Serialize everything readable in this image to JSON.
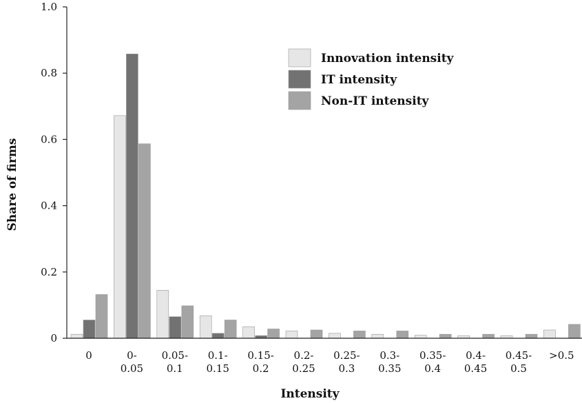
{
  "chart_data": {
    "type": "bar",
    "xlabel": "Intensity",
    "ylabel": "Share of firms",
    "ylim": [
      0,
      1.0
    ],
    "yticks": [
      "0",
      "0.2",
      "0.4",
      "0.6",
      "0.8",
      "1.0"
    ],
    "yticks_values": [
      0,
      0.2,
      0.4,
      0.6,
      0.8,
      1.0
    ],
    "categories": [
      [
        "0"
      ],
      [
        "0-",
        "0.05"
      ],
      [
        "0.05-",
        "0.1"
      ],
      [
        "0.1-",
        "0.15"
      ],
      [
        "0.15-",
        "0.2"
      ],
      [
        "0.2-",
        "0.25"
      ],
      [
        "0.25-",
        "0.3"
      ],
      [
        "0.3-",
        "0.35"
      ],
      [
        "0.35-",
        "0.4"
      ],
      [
        "0.4-",
        "0.45"
      ],
      [
        "0.45-",
        "0.5"
      ],
      [
        ">0.5"
      ]
    ],
    "series": [
      {
        "name": "Innovation intensity",
        "color": "#e6e6e6",
        "values": [
          0.012,
          0.672,
          0.145,
          0.068,
          0.035,
          0.022,
          0.015,
          0.012,
          0.009,
          0.008,
          0.008,
          0.025
        ]
      },
      {
        "name": "IT intensity",
        "color": "#727272",
        "values": [
          0.055,
          0.858,
          0.065,
          0.015,
          0.008,
          0.0,
          0.0,
          0.0,
          0.0,
          0.0,
          0.0,
          0.0
        ]
      },
      {
        "name": "Non-IT intensity",
        "color": "#a4a4a4",
        "values": [
          0.132,
          0.587,
          0.098,
          0.055,
          0.028,
          0.025,
          0.022,
          0.022,
          0.012,
          0.012,
          0.012,
          0.042
        ]
      }
    ],
    "legend": "top-right",
    "grid": false
  }
}
